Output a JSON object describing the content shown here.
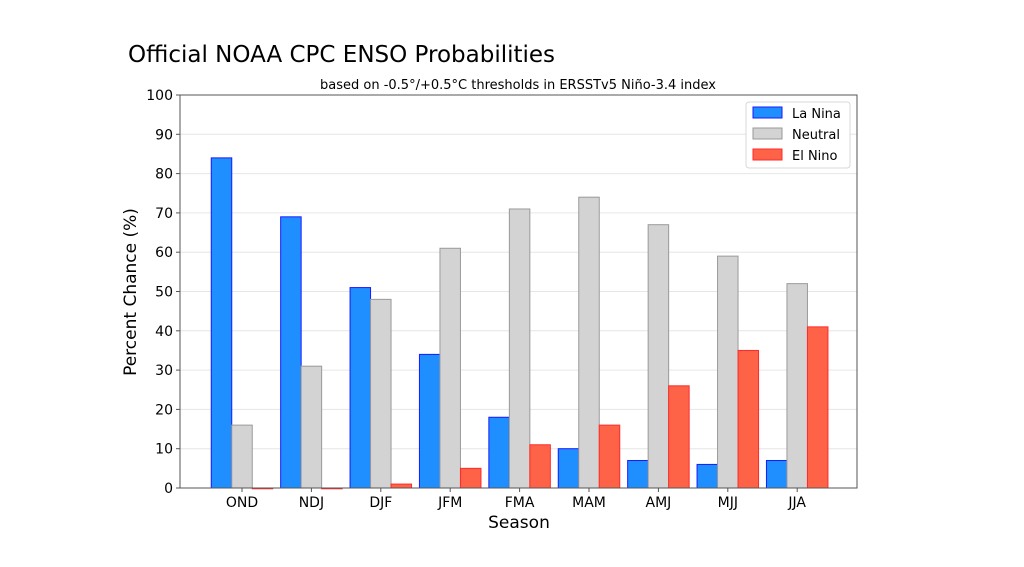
{
  "chart_data": {
    "type": "bar",
    "title": "Official NOAA CPC ENSO Probabilities",
    "subtitle": "based on -0.5°/+0.5°C thresholds in ERSSTv5 Niño-3.4 index",
    "xlabel": "Season",
    "ylabel": "Percent Chance (%)",
    "ylim": [
      0,
      100
    ],
    "yticks": [
      0,
      10,
      20,
      30,
      40,
      50,
      60,
      70,
      80,
      90,
      100
    ],
    "grid": true,
    "legend_position": "top-right",
    "categories": [
      "OND",
      "NDJ",
      "DJF",
      "JFM",
      "FMA",
      "MAM",
      "AMJ",
      "MJJ",
      "JJA"
    ],
    "series": [
      {
        "name": "La Nina",
        "color": "#1f8fff",
        "edge": "#1a1aff",
        "values": [
          84,
          69,
          51,
          34,
          18,
          10,
          7,
          6,
          7
        ]
      },
      {
        "name": "Neutral",
        "color": "#d3d3d3",
        "edge": "#9a9a9a",
        "values": [
          16,
          31,
          48,
          61,
          71,
          74,
          67,
          59,
          52
        ]
      },
      {
        "name": "El Nino",
        "color": "#ff6347",
        "edge": "#ff2a2a",
        "values": [
          0,
          0,
          1,
          5,
          11,
          16,
          26,
          35,
          41
        ]
      }
    ]
  }
}
